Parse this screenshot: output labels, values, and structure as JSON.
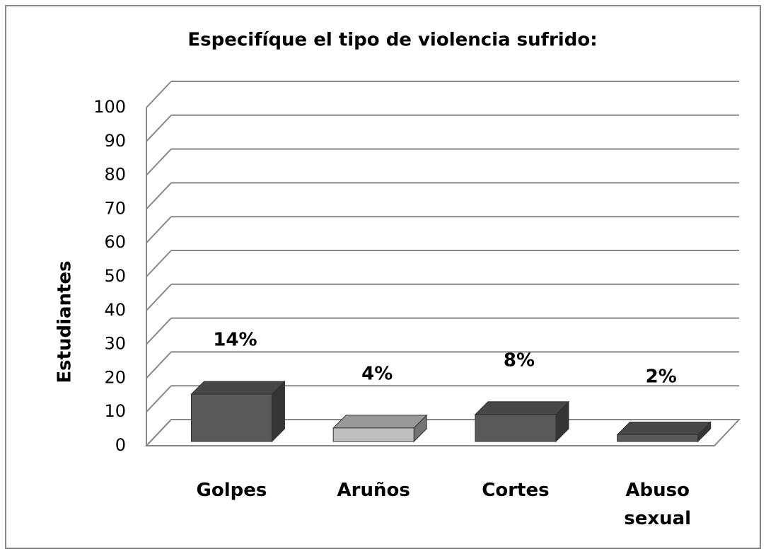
{
  "chart_data": {
    "type": "bar3d",
    "title": "Especifíque el tipo de violencia sufrido:",
    "y_label": "Estudiantes",
    "categories": [
      "Golpes",
      "Aruños",
      "Cortes",
      "Abuso sexual"
    ],
    "values": [
      14,
      4,
      8,
      2
    ],
    "value_labels": [
      "14%",
      "4%",
      "8%",
      "2%"
    ],
    "colors": [
      "#595959",
      "#bfbfbf",
      "#595959",
      "#595959"
    ],
    "ylim": [
      0,
      100
    ],
    "yticks": [
      0,
      10,
      20,
      30,
      40,
      50,
      60,
      70,
      80,
      90,
      100
    ],
    "grid": true
  }
}
